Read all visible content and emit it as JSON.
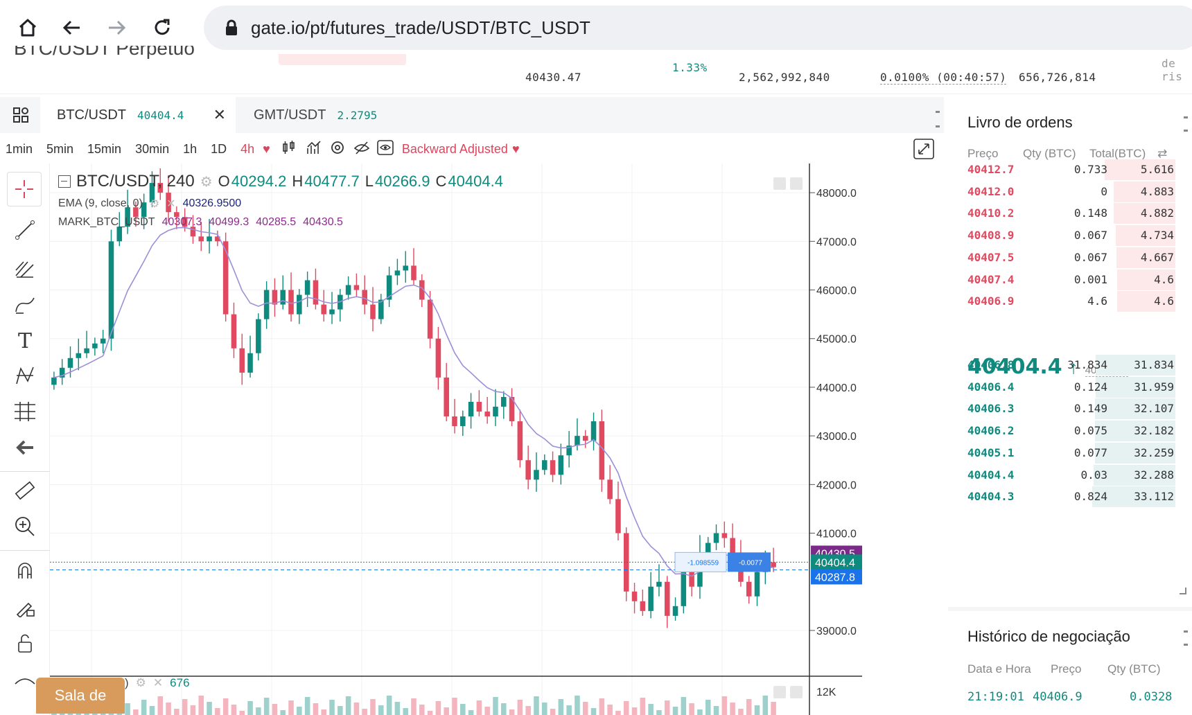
{
  "browser": {
    "url": "gate.io/pt/futures_trade/USDT/BTC_USDT",
    "icons": [
      "home-icon",
      "back-icon",
      "forward-icon",
      "reload-icon",
      "lock-icon"
    ]
  },
  "ticker": {
    "title_cut": "BTC/USDT Perpétuo",
    "mark_price": "40430.47",
    "change_pct": "1.33%",
    "volume": "2,562,992,840",
    "funding": "0.0100% (00:40:57)",
    "open_interest": "656,726,814",
    "risk_cut": "de ris"
  },
  "tabs": [
    {
      "label": "BTC/USDT",
      "price": "40404.4"
    },
    {
      "label": "GMT/USDT",
      "price": "2.2795"
    }
  ],
  "intervals": [
    "1min",
    "5min",
    "15min",
    "30min",
    "1h",
    "1D",
    "4h"
  ],
  "active_interval": "4h",
  "backward_adjusted": "Backward Adjusted",
  "legend": {
    "symbol": "BTC/USDT, 240",
    "o_label": "O",
    "o": "40294.2",
    "h_label": "H",
    "h": "40477.7",
    "l_label": "L",
    "l": "40266.9",
    "c_label": "C",
    "c": "40404.4",
    "ema_label": "EMA (9, close, 0)",
    "ema_value": "40326.9500",
    "mark_label": "MARK_BTC_USDT",
    "mark_values": [
      "40307.3",
      "40499.3",
      "40285.5",
      "40430.5"
    ],
    "volume_value": "676"
  },
  "chart_data": {
    "type": "candlestick",
    "y_ticks": [
      "48000.0",
      "47000.0",
      "46000.0",
      "45000.0",
      "44000.0",
      "43000.0",
      "42000.0",
      "41000.0",
      "39000.0"
    ],
    "price_tags": [
      {
        "label": "40430.5",
        "value": 40430.5,
        "color": "#7b2a8a"
      },
      {
        "label": "40404.4",
        "value": 40404.4,
        "color": "#0e8a7e"
      },
      {
        "label": "40287.8",
        "value": 40287.8,
        "color": "#1a73e8"
      }
    ],
    "volume_tick": "12K",
    "position_labels": [
      "-1.098559",
      "-0.0077"
    ],
    "ylim": [
      38700,
      48600
    ],
    "close_series": [
      44200,
      44400,
      44600,
      44700,
      44800,
      44900,
      45000,
      47000,
      47300,
      47700,
      47500,
      47800,
      48200,
      48000,
      47600,
      47500,
      47300,
      47100,
      47000,
      47100,
      47000,
      45500,
      44800,
      44300,
      44700,
      45400,
      46000,
      45700,
      46000,
      45500,
      45900,
      46200,
      45700,
      45500,
      45600,
      45900,
      46100,
      46000,
      45700,
      45400,
      45800,
      46300,
      46400,
      46500,
      46200,
      45800,
      45000,
      44200,
      43400,
      43200,
      43400,
      43700,
      43500,
      43400,
      43600,
      43800,
      43300,
      42500,
      42100,
      42300,
      42500,
      42200,
      42600,
      42800,
      43000,
      42900,
      43300,
      42100,
      41700,
      41000,
      39800,
      39600,
      39400,
      39900,
      40000,
      39300,
      39500,
      40200,
      39900,
      40600,
      40800,
      41000,
      40900,
      40500,
      40000,
      39700,
      40200,
      40400,
      40300
    ]
  },
  "order_book": {
    "title": "Livro de ordens",
    "headers": [
      "Preço",
      "Qty (BTC)",
      "Total(BTC)"
    ],
    "asks": [
      {
        "price": "40412.7",
        "qty": "0.733",
        "total": "5.616",
        "fill": 0.85
      },
      {
        "price": "40412.0",
        "qty": "0",
        "total": "4.883",
        "fill": 0.74
      },
      {
        "price": "40410.2",
        "qty": "0.148",
        "total": "4.882",
        "fill": 0.74
      },
      {
        "price": "40408.9",
        "qty": "0.067",
        "total": "4.734",
        "fill": 0.72
      },
      {
        "price": "40407.5",
        "qty": "0.067",
        "total": "4.667",
        "fill": 0.71
      },
      {
        "price": "40407.4",
        "qty": "0.001",
        "total": "4.6",
        "fill": 0.7
      },
      {
        "price": "40406.9",
        "qty": "4.6",
        "total": "4.6",
        "fill": 0.7
      }
    ],
    "last_price": "40404.4",
    "mark_price": "40430.47",
    "bids": [
      {
        "price": "40406.8",
        "qty": "31.834",
        "total": "31.834",
        "fill": 0.96
      },
      {
        "price": "40406.4",
        "qty": "0.124",
        "total": "31.959",
        "fill": 0.96
      },
      {
        "price": "40406.3",
        "qty": "0.149",
        "total": "32.107",
        "fill": 0.97
      },
      {
        "price": "40406.2",
        "qty": "0.075",
        "total": "32.182",
        "fill": 0.97
      },
      {
        "price": "40405.1",
        "qty": "0.077",
        "total": "32.259",
        "fill": 0.97
      },
      {
        "price": "40404.4",
        "qty": "0.03",
        "total": "32.288",
        "fill": 0.98
      },
      {
        "price": "40404.3",
        "qty": "0.824",
        "total": "33.112",
        "fill": 1.0
      }
    ]
  },
  "history": {
    "title": "Histórico de negociação",
    "headers": [
      "Data e Hora",
      "Preço",
      "Qty (BTC)"
    ],
    "first": {
      "time": "21:19:01",
      "price": "40406.9",
      "qty": "0.0328"
    }
  },
  "chat_button": "Sala de",
  "colors": {
    "up": "#0e8a7e",
    "down": "#e0495f",
    "accent": "#d9475d"
  }
}
